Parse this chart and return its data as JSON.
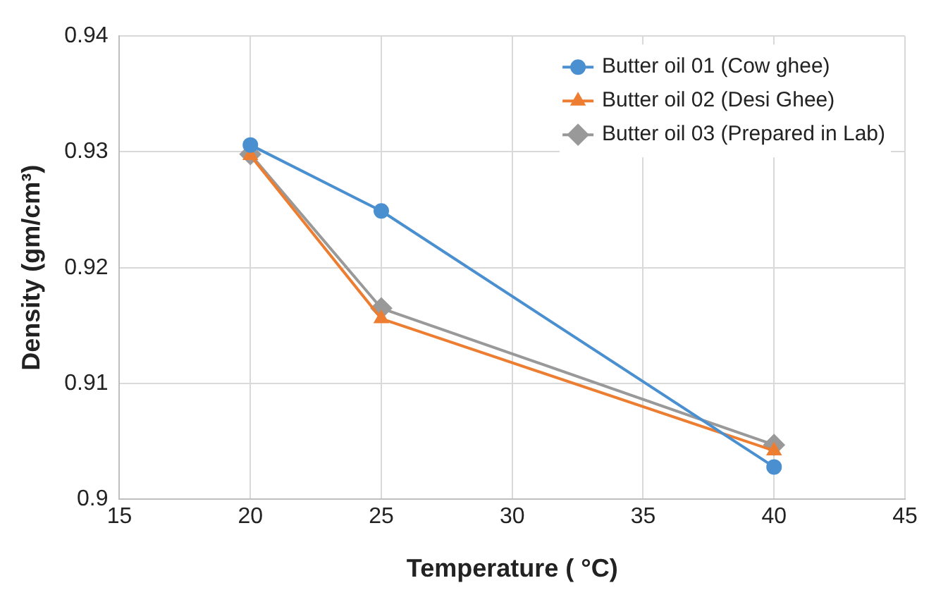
{
  "chart_data": {
    "type": "line",
    "xlabel": "Temperature ( °C)",
    "ylabel": "Density (gm/cm³)",
    "x": [
      20,
      25,
      40
    ],
    "series": [
      {
        "name": "Butter oil 01 (Cow ghee)",
        "color": "#4a90d0",
        "values": [
          0.9306,
          0.9249,
          0.9028
        ],
        "marker": "circle"
      },
      {
        "name": "Butter oil 02 (Desi Ghee)",
        "color": "#ed7d31",
        "values": [
          0.9297,
          0.9156,
          0.9042
        ],
        "marker": "triangle"
      },
      {
        "name": "Butter oil 03 (Prepared in Lab)",
        "color": "#999999",
        "values": [
          0.9298,
          0.9165,
          0.9047
        ],
        "marker": "diamond"
      }
    ],
    "xlim": [
      15,
      45
    ],
    "xticks": [
      15,
      20,
      25,
      30,
      35,
      40,
      45
    ],
    "ylim": [
      0.9,
      0.94
    ],
    "yticks": [
      0.9,
      0.91,
      0.92,
      0.93,
      0.94
    ],
    "grid": true,
    "legend": "top right",
    "line_style": "solid"
  }
}
